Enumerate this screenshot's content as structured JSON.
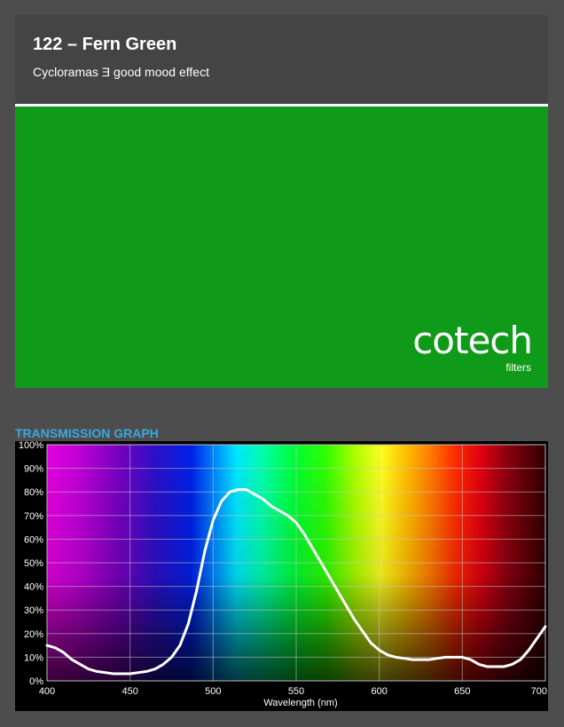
{
  "filter": {
    "title": "122 – Fern Green",
    "subtitle": "Cycloramas Ǝ good mood effect",
    "swatch_color": "#109a1a"
  },
  "brand": {
    "name": "cotech",
    "tagline": "filters"
  },
  "graph_section": {
    "heading": "TRANSMISSION GRAPH",
    "heading_color": "#3aa8e0"
  },
  "chart_data": {
    "type": "line",
    "title": "",
    "xlabel": "Wavelength (nm)",
    "ylabel": "",
    "xlim": [
      400,
      700
    ],
    "ylim": [
      0,
      100
    ],
    "x_ticks": [
      "400",
      "450",
      "500",
      "550",
      "600",
      "650",
      "700"
    ],
    "y_ticks": [
      "0%",
      "10%",
      "20%",
      "30%",
      "40%",
      "50%",
      "60%",
      "70%",
      "80%",
      "90%",
      "100%"
    ],
    "grid": true,
    "background": "visible spectrum gradient",
    "line_color": "#ffffff",
    "series": [
      {
        "x": [
          400,
          405,
          410,
          415,
          420,
          425,
          430,
          435,
          440,
          445,
          450,
          455,
          460,
          465,
          470,
          475,
          480,
          485,
          490,
          495,
          500,
          505,
          510,
          515,
          520,
          525,
          530,
          535,
          540,
          545,
          550,
          555,
          560,
          565,
          570,
          575,
          580,
          585,
          590,
          595,
          600,
          605,
          610,
          615,
          620,
          625,
          630,
          635,
          640,
          645,
          650,
          655,
          660,
          665,
          670,
          675,
          680,
          685,
          690,
          695,
          700
        ],
        "y": [
          15,
          14,
          12,
          9,
          7,
          5,
          4,
          3.5,
          3,
          3,
          3,
          3.5,
          4,
          5,
          7,
          10,
          15,
          24,
          38,
          55,
          68,
          76,
          80,
          81,
          81,
          79,
          77,
          74,
          72,
          70,
          67,
          62,
          56,
          50,
          44,
          38,
          32,
          26,
          21,
          16,
          13,
          11,
          10,
          9.5,
          9,
          9,
          9,
          9.5,
          10,
          10,
          10,
          9,
          7,
          6,
          6,
          6,
          7,
          9,
          13,
          18,
          23
        ]
      }
    ]
  }
}
